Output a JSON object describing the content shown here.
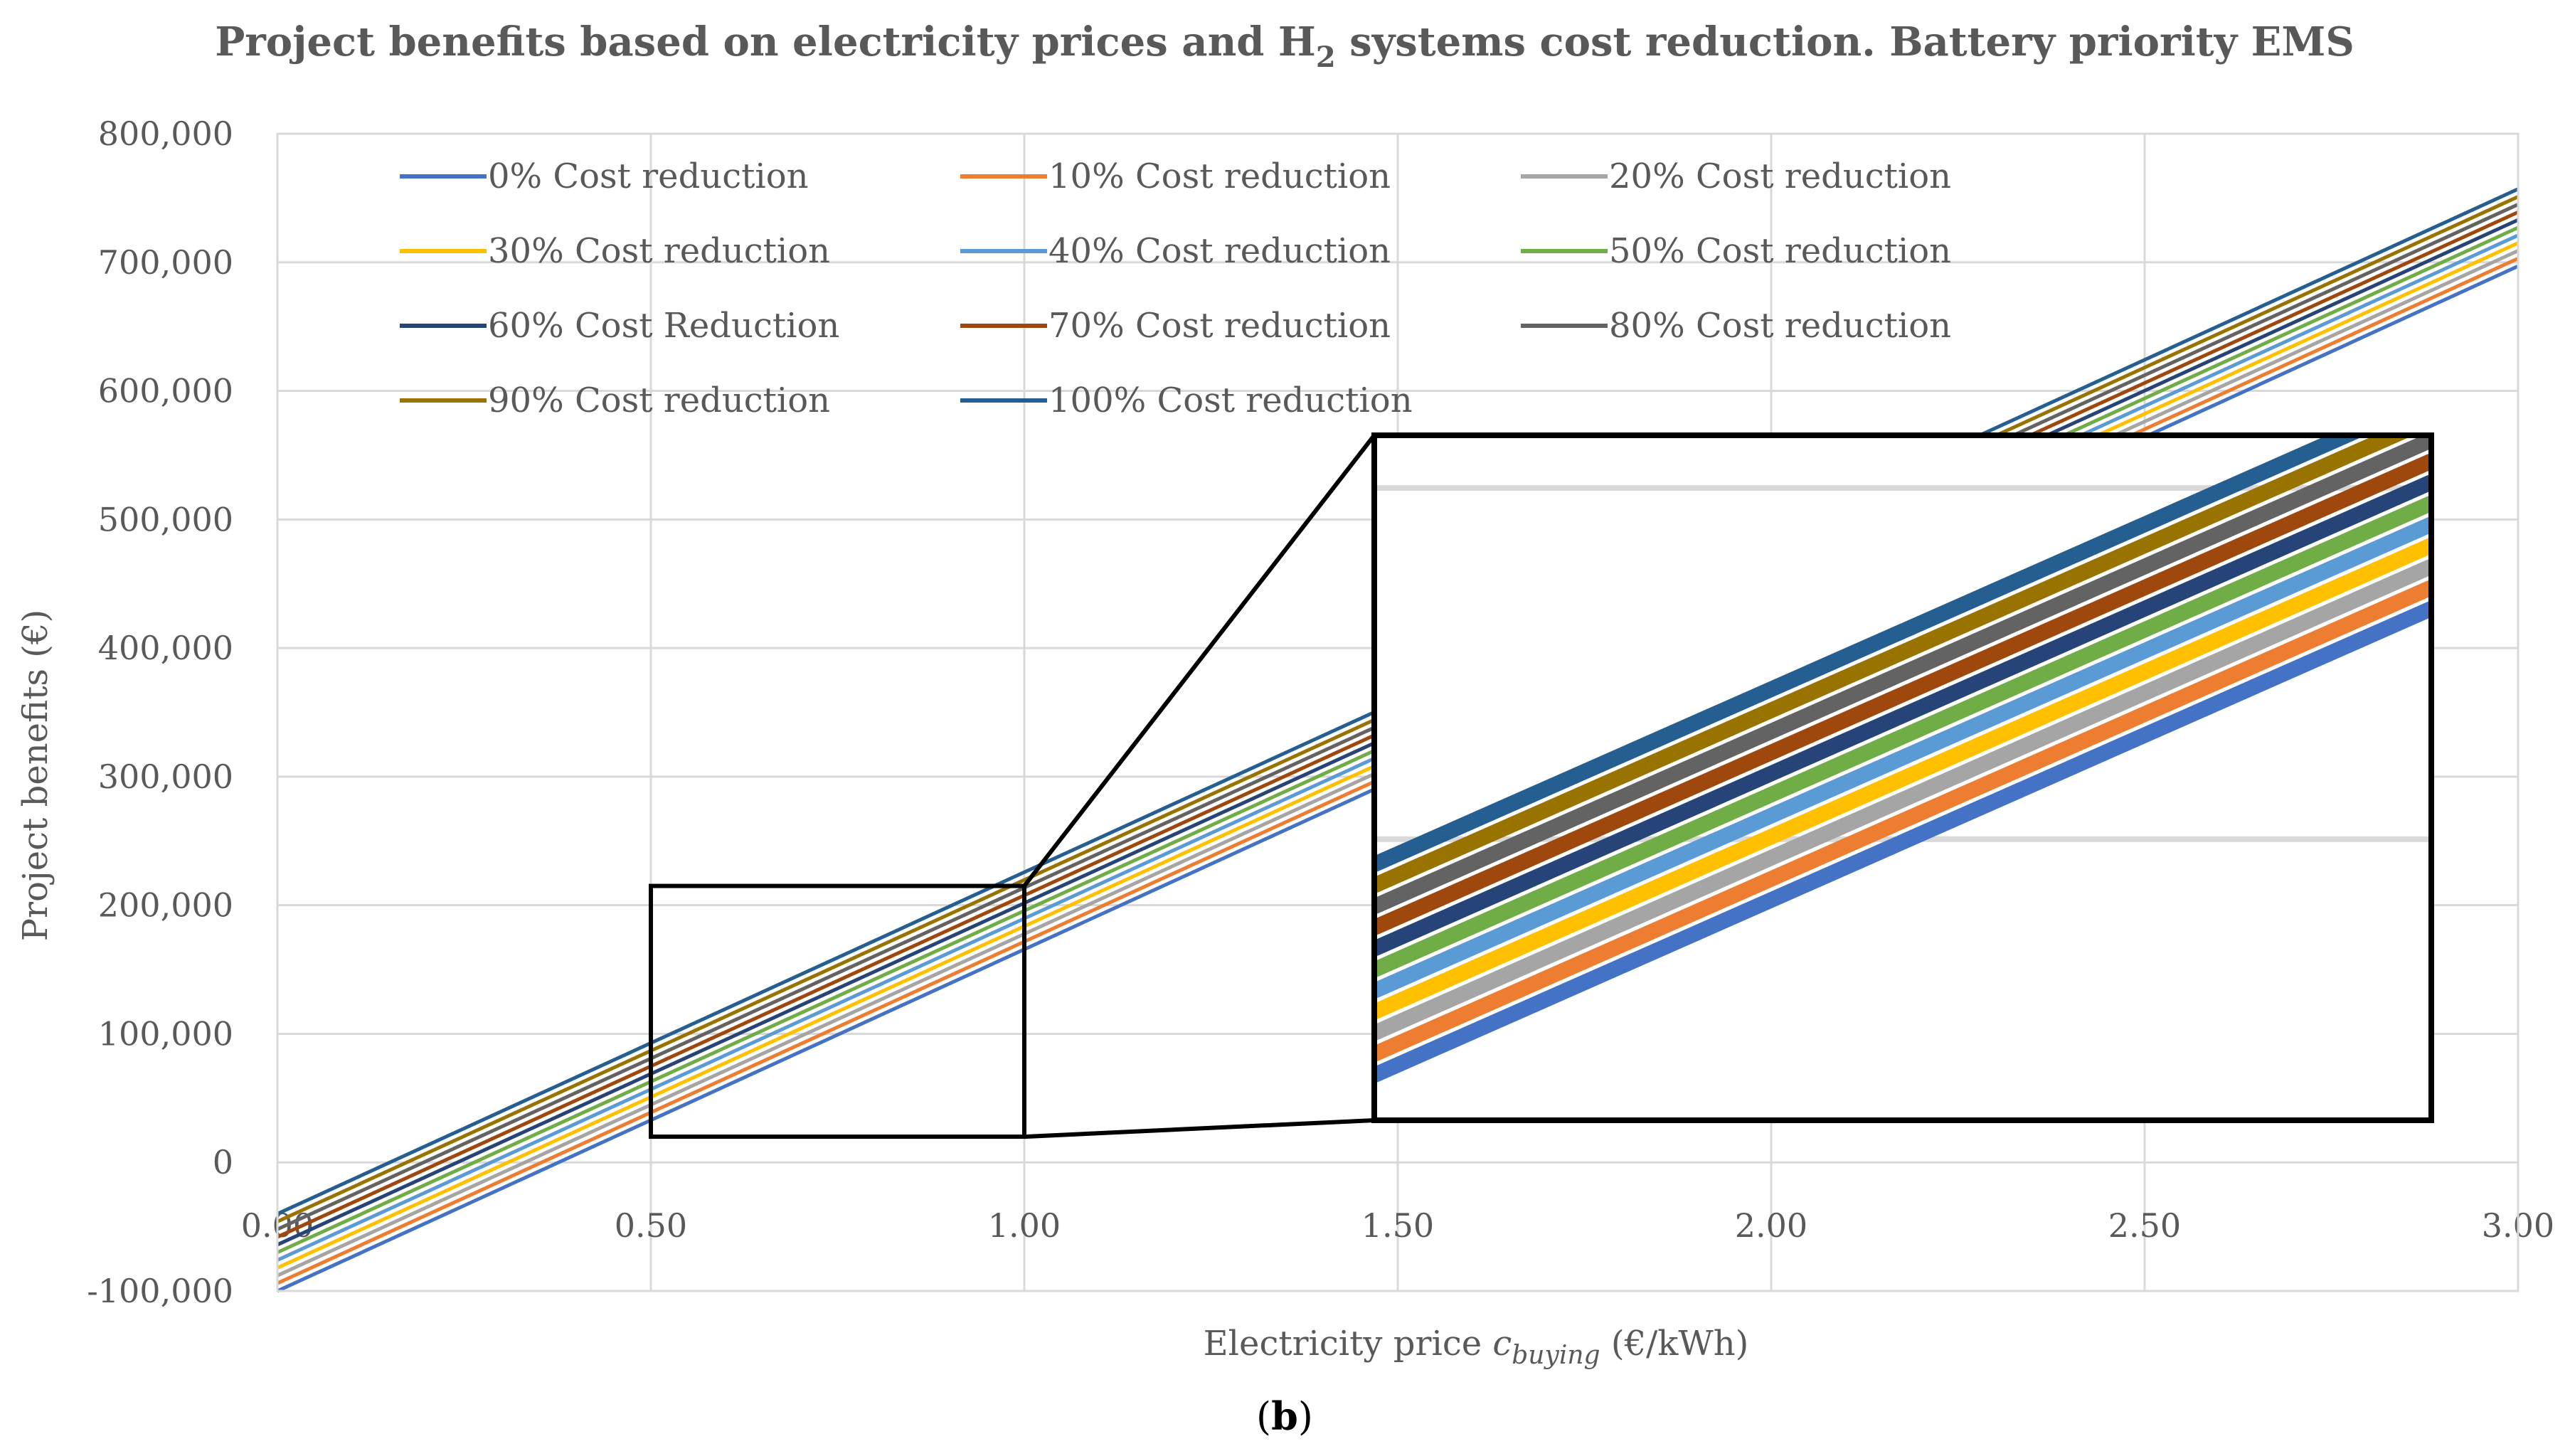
{
  "chart_data": {
    "type": "line",
    "title": "Project benefits based on electricity prices and H",
    "title_subscript": "2",
    "title_suffix": " systems cost reduction. Battery priority EMS",
    "xlabel_prefix": "Electricity price ",
    "xlabel_var": "c",
    "xlabel_sub": "buying",
    "xlabel_suffix": " (€/kWh)",
    "ylabel": "Project benefits (€)",
    "xlim": [
      0,
      3
    ],
    "ylim": [
      -100000,
      800000
    ],
    "x_ticks": [
      0,
      0.5,
      1.0,
      1.5,
      2.0,
      2.5,
      3.0
    ],
    "x_tick_labels": [
      "0.00",
      "0.50",
      "1.00",
      "1.50",
      "2.00",
      "2.50",
      "3.00"
    ],
    "y_ticks": [
      -100000,
      0,
      100000,
      200000,
      300000,
      400000,
      500000,
      600000,
      700000,
      800000
    ],
    "y_tick_labels": [
      "-100,000",
      "0",
      "100,000",
      "200,000",
      "300,000",
      "400,000",
      "500,000",
      "600,000",
      "700,000",
      "800,000"
    ],
    "grid": true,
    "legend_position": "top-left",
    "x": [
      0,
      3
    ],
    "series": [
      {
        "name": "0% Cost reduction",
        "color": "#4472C4",
        "values": [
          -100000,
          697000
        ]
      },
      {
        "name": "10% Cost reduction",
        "color": "#ED7D31",
        "values": [
          -94000,
          703000
        ]
      },
      {
        "name": "20% Cost reduction",
        "color": "#A5A5A5",
        "values": [
          -88000,
          709000
        ]
      },
      {
        "name": "30% Cost reduction",
        "color": "#FFC000",
        "values": [
          -82000,
          715000
        ]
      },
      {
        "name": "40% Cost reduction",
        "color": "#5B9BD5",
        "values": [
          -76000,
          721000
        ]
      },
      {
        "name": "50% Cost reduction",
        "color": "#70AD47",
        "values": [
          -70000,
          727000
        ]
      },
      {
        "name": "60% Cost Reduction",
        "color": "#264478",
        "values": [
          -64000,
          733000
        ]
      },
      {
        "name": "70% Cost reduction",
        "color": "#9E480E",
        "values": [
          -58000,
          739000
        ]
      },
      {
        "name": "80% Cost reduction",
        "color": "#636363",
        "values": [
          -52000,
          745000
        ]
      },
      {
        "name": "90% Cost reduction",
        "color": "#997300",
        "values": [
          -46000,
          751000
        ]
      },
      {
        "name": "100% Cost reduction",
        "color": "#255E91",
        "values": [
          -40000,
          757000
        ]
      }
    ],
    "zoom_region": {
      "x_range": [
        0.5,
        1.0
      ],
      "y_range": [
        20000,
        215000
      ]
    },
    "caption_open": "(",
    "caption_letter": "b",
    "caption_close": ")"
  }
}
